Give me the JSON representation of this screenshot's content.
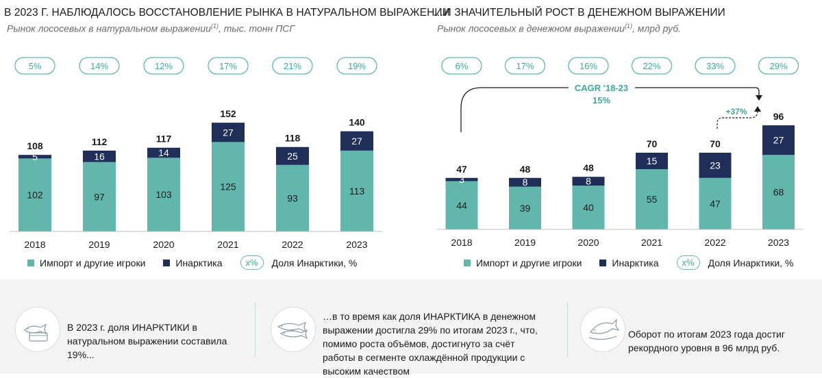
{
  "colors": {
    "teal": "#62b7ad",
    "navy": "#202f5a",
    "accent": "#3ea89d",
    "pill_border": "#5fb8ae"
  },
  "left": {
    "title": "В 2023 Г. НАБЛЮДАЛОСЬ ВОССТАНОВЛЕНИЕ РЫНКА В НАТУРАЛЬНОМ ВЫРАЖЕНИИ",
    "subtitle_main": "Рынок лососевых в натуральном выражении",
    "subtitle_sup": "(1)",
    "subtitle_tail": ", тыс. тонн ПСГ",
    "legend": {
      "import": "Импорт и другие игроки",
      "inarctica": "Инарктика",
      "pill": "x%",
      "share": "Доля Инарктики, %"
    }
  },
  "right": {
    "title": "…И ЗНАЧИТЕЛЬНЫЙ РОСТ В ДЕНЕЖНОМ ВЫРАЖЕНИИ",
    "subtitle_main": "Рынок лососевых в денежном выражении",
    "subtitle_sup": "(1)",
    "subtitle_tail": ", млрд руб.",
    "cagr_label": "CAGR '18-23",
    "cagr_value": "15%",
    "growth_label": "+37%",
    "legend": {
      "import": "Импорт и другие игроки",
      "inarctica": "Инарктика",
      "pill": "x%",
      "share": "Доля Инарктики, %"
    }
  },
  "chart_data": [
    {
      "type": "bar",
      "stacked": true,
      "title": "Рынок лососевых в натуральном выражении, тыс. тонн ПСГ",
      "categories": [
        "2018",
        "2019",
        "2020",
        "2021",
        "2022",
        "2023"
      ],
      "series": [
        {
          "name": "Импорт и другие игроки",
          "values": [
            102,
            97,
            103,
            125,
            93,
            113
          ]
        },
        {
          "name": "Инарктика",
          "values": [
            5,
            16,
            14,
            27,
            25,
            27
          ]
        }
      ],
      "totals": [
        108,
        112,
        117,
        152,
        118,
        140
      ],
      "shares": [
        "5%",
        "14%",
        "12%",
        "17%",
        "21%",
        "19%"
      ],
      "ylim": [
        0,
        160
      ]
    },
    {
      "type": "bar",
      "stacked": true,
      "title": "Рынок лососевых в денежном выражении, млрд руб.",
      "categories": [
        "2018",
        "2019",
        "2020",
        "2021",
        "2022",
        "2023"
      ],
      "series": [
        {
          "name": "Импорт и другие игроки",
          "values": [
            44,
            39,
            40,
            55,
            47,
            68
          ]
        },
        {
          "name": "Инарктика",
          "values": [
            3,
            8,
            8,
            15,
            23,
            27
          ]
        }
      ],
      "totals": [
        47,
        48,
        48,
        70,
        70,
        96
      ],
      "shares": [
        "6%",
        "17%",
        "16%",
        "22%",
        "33%",
        "29%"
      ],
      "ylim": [
        0,
        100
      ]
    }
  ],
  "bottom": {
    "card1": {
      "icon": "fish-package-icon",
      "lines": [
        "В 2023 г. доля ИНАРКТИКИ в",
        "натуральном выражении составила",
        "19%..."
      ]
    },
    "card2": {
      "icon": "fish-fillets-icon",
      "lines": [
        "…в то время как доля ИНАРКТИКА в денежном",
        "выражении достигла 29% по итогам 2023 г., что,",
        "помимо роста объёмов, достигнуто за счёт",
        "работы в сегменте охлаждённой продукции с",
        "высоким качеством"
      ]
    },
    "card3": {
      "icon": "fish-plate-icon",
      "lines": [
        "Оборот по итогам 2023 года достиг",
        "рекордного уровня в 96 млрд руб."
      ]
    }
  }
}
